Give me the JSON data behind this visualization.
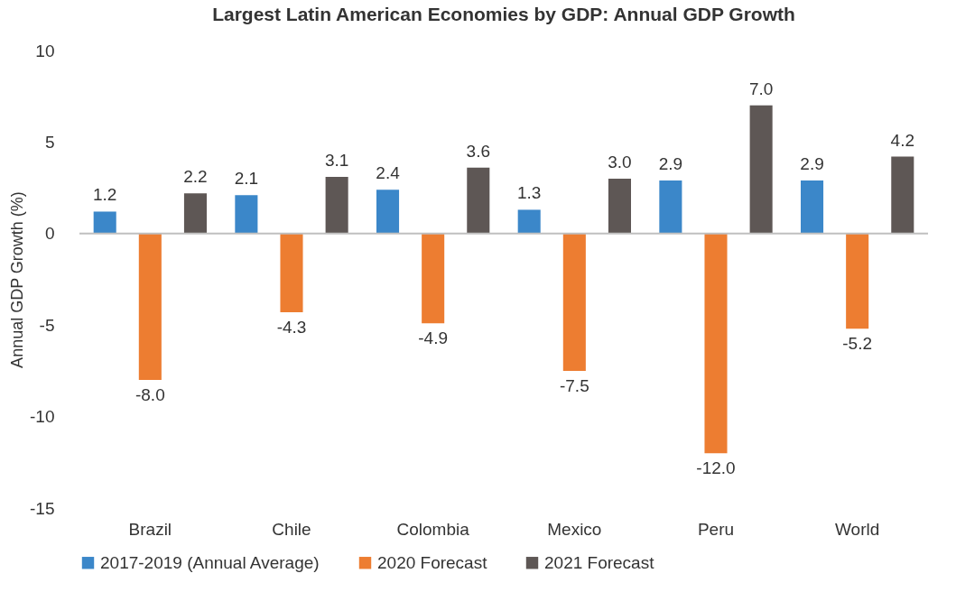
{
  "chart_data": {
    "type": "bar",
    "title": "Largest Latin American Economies by GDP: Annual GDP Growth",
    "ylabel": "Annual GDP Growth (%)",
    "categories": [
      "Brazil",
      "Chile",
      "Colombia",
      "Mexico",
      "Peru",
      "World"
    ],
    "series": [
      {
        "name": "2017-2019 (Annual Average)",
        "color": "#3b87c9",
        "values": [
          1.2,
          2.1,
          2.4,
          1.3,
          2.9,
          2.9
        ],
        "value_labels": [
          "1.2",
          "2.1",
          "2.4",
          "1.3",
          "2.9",
          "2.9"
        ]
      },
      {
        "name": "2020 Forecast",
        "color": "#ed7d31",
        "values": [
          -8.0,
          -4.3,
          -4.9,
          -7.5,
          -12.0,
          -5.2
        ],
        "value_labels": [
          "-8.0",
          "-4.3",
          "-4.9",
          "-7.5",
          "-12.0",
          "-5.2"
        ]
      },
      {
        "name": "2021 Forecast",
        "color": "#5e5755",
        "values": [
          2.2,
          3.1,
          3.6,
          3.0,
          7.0,
          4.2
        ],
        "value_labels": [
          "2.2",
          "3.1",
          "3.6",
          "3.0",
          "7.0",
          "4.2"
        ]
      }
    ],
    "ylim": [
      -15,
      10
    ],
    "yticks": [
      -15,
      -10,
      -5,
      0,
      5,
      10
    ],
    "grid": false,
    "legend": "bottom",
    "ref_lines": [
      {
        "axis": "y",
        "value": 0,
        "color": "#bfbfbf"
      }
    ]
  }
}
